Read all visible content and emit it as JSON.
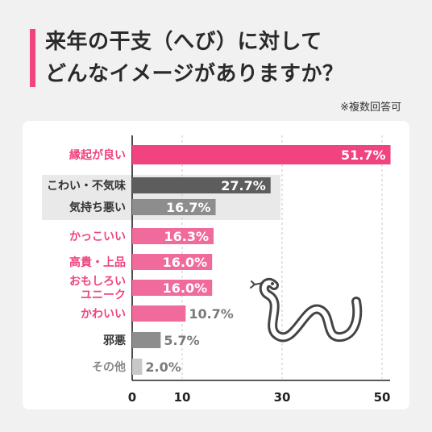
{
  "header": {
    "title_line1": "来年の干支（へび）に対して",
    "title_line2": "どんなイメージがありますか？",
    "note": "※複数回答可"
  },
  "colors": {
    "accent": "#f0437f",
    "pink": "#f06a9c",
    "dark": "#5d5d5d",
    "gray": "#8d8d8d",
    "light": "#c8c8c8"
  },
  "chart_data": {
    "type": "bar",
    "orientation": "horizontal",
    "categories": [
      "縁起が良い",
      "こわい・不気味",
      "気持ち悪い",
      "かっこいい",
      "高貴・上品",
      "おもしろい\nユニーク",
      "かわいい",
      "邪悪",
      "その他"
    ],
    "values": [
      51.7,
      27.7,
      16.7,
      16.3,
      16.0,
      16.0,
      10.7,
      5.7,
      2.0
    ],
    "value_labels": [
      "51.7%",
      "27.7%",
      "16.7%",
      "16.3%",
      "16.0%",
      "16.0%",
      "10.7%",
      "5.7%",
      "2.0%"
    ],
    "xticks": [
      "0",
      "10",
      "30",
      "50"
    ],
    "xlim": [
      0,
      52
    ],
    "grid": true,
    "scale": "non-linear (broken between 10 and 30)"
  }
}
